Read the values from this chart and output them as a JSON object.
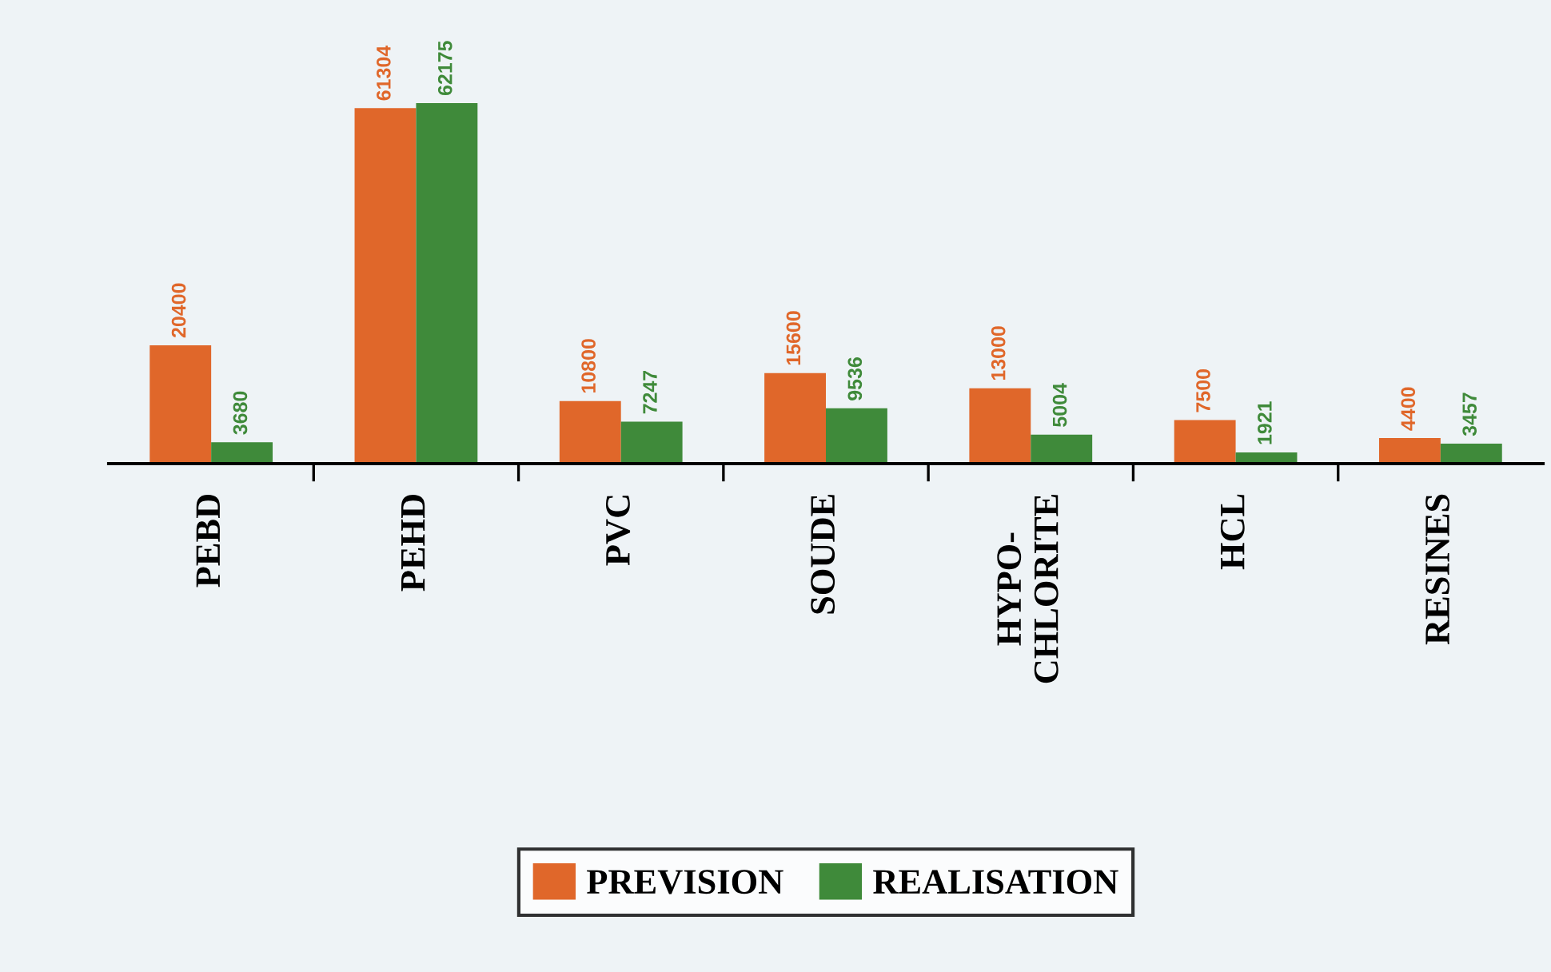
{
  "chart_data": {
    "type": "bar",
    "categories": [
      "PEBD",
      "PEHD",
      "PVC",
      "SOUDE",
      "HYPO-\nCHLORITE",
      "HCL",
      "RESINES"
    ],
    "series": [
      {
        "name": "PREVISION",
        "color": "#e0672a",
        "values": [
          20400,
          61304,
          10800,
          15600,
          13000,
          7500,
          4400
        ]
      },
      {
        "name": "REALISATION",
        "color": "#3f8a3a",
        "values": [
          3680,
          62175,
          7247,
          9536,
          5004,
          1921,
          3457
        ]
      }
    ],
    "data_labels": true,
    "legend": "bottom",
    "grid": false
  }
}
